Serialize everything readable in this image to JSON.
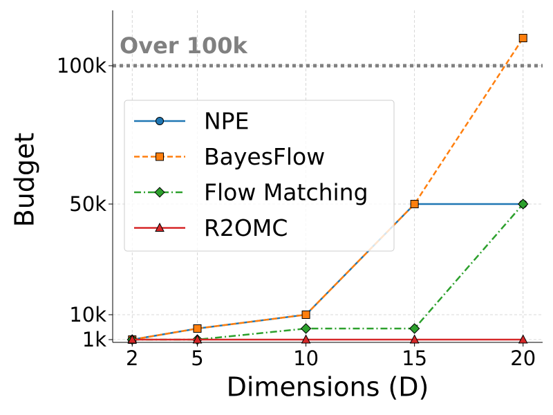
{
  "chart_data": {
    "type": "line",
    "x_label": "Dimensions (D)",
    "y_label": "Budget",
    "x": [
      2,
      5,
      10,
      15,
      20
    ],
    "series": [
      {
        "name": "NPE",
        "color": "#1f77b4",
        "marker": "circle",
        "linestyle": "solid",
        "values": [
          1000,
          5000,
          10000,
          50000,
          50000
        ]
      },
      {
        "name": "BayesFlow",
        "color": "#ff7f0e",
        "marker": "square",
        "linestyle": "dashed",
        "values": [
          1000,
          5000,
          10000,
          50000,
          110000
        ]
      },
      {
        "name": "Flow Matching",
        "color": "#2ca02c",
        "marker": "diamond",
        "linestyle": "dashdot",
        "values": [
          1000,
          1000,
          5000,
          5000,
          50000
        ]
      },
      {
        "name": "R2OMC",
        "color": "#d62728",
        "marker": "triangle",
        "linestyle": "solid",
        "values": [
          1000,
          1000,
          1000,
          1000,
          1000
        ]
      }
    ],
    "xlim": [
      1.1,
      20.9
    ],
    "xticks": [
      2,
      5,
      10,
      15,
      20
    ],
    "ylim": [
      0,
      120000
    ],
    "yticks": [
      {
        "value": 1000,
        "label": "1k"
      },
      {
        "value": 10000,
        "label": "10k"
      },
      {
        "value": 50000,
        "label": "50k"
      },
      {
        "value": 100000,
        "label": "100k"
      }
    ],
    "hline": {
      "value": 100000,
      "label": "Over 100k",
      "color": "#808080"
    },
    "grid": true,
    "legend": "upper left"
  }
}
